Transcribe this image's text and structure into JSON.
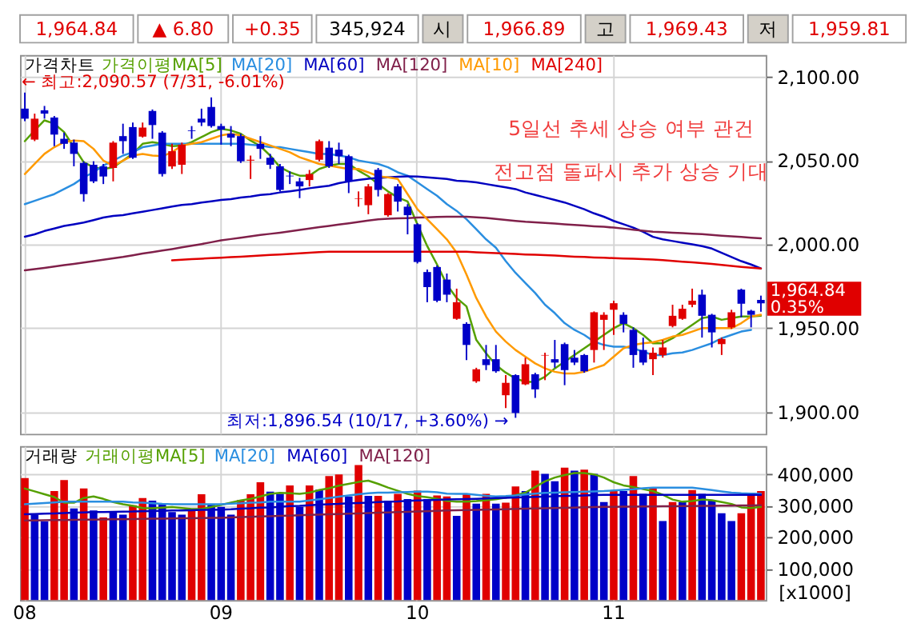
{
  "chart_data": [
    {
      "type": "other",
      "annotations": [
        "1,964.84",
        "▲ 6.80",
        "+0.35",
        "345,924",
        "시",
        "1,966.89",
        "고",
        "1,969.43",
        "저",
        "1,959.81"
      ]
    },
    {
      "type": "candlestick",
      "title": "가격차트",
      "tick_labels": "y",
      "grid": true,
      "legend": "top left",
      "categories": [
        "08",
        null,
        null,
        null,
        null,
        null,
        null,
        null,
        null,
        null,
        null,
        null,
        null,
        null,
        null,
        null,
        null,
        null,
        null,
        null,
        "09",
        null,
        null,
        null,
        null,
        null,
        null,
        null,
        null,
        null,
        null,
        null,
        null,
        null,
        null,
        null,
        null,
        null,
        null,
        null,
        "10",
        null,
        null,
        null,
        null,
        null,
        null,
        null,
        null,
        null,
        null,
        null,
        null,
        null,
        null,
        null,
        null,
        null,
        null,
        null,
        "11",
        null,
        null,
        null,
        null,
        null,
        null,
        null,
        null,
        null,
        null,
        null,
        null,
        null,
        null,
        null
      ],
      "ohlc": [
        [
          2081,
          2090.57,
          2073.5,
          2075
        ],
        [
          2062.5,
          2078,
          2061.6,
          2075
        ],
        [
          2080,
          2082.6,
          2075,
          2078
        ],
        [
          2075.7,
          2076.6,
          2058.6,
          2065.5
        ],
        [
          2063,
          2066.7,
          2057,
          2060
        ],
        [
          2060.7,
          2062.5,
          2046.6,
          2054
        ],
        [
          2048.6,
          2049.6,
          2025.5,
          2030
        ],
        [
          2047.5,
          2049.6,
          2036.6,
          2037.6
        ],
        [
          2046.5,
          2048,
          2036,
          2040.5
        ],
        [
          2045.6,
          2061.6,
          2037.6,
          2060.7
        ],
        [
          2064.6,
          2072,
          2054,
          2061.6
        ],
        [
          2070,
          2072.7,
          2051,
          2051.7
        ],
        [
          2064.3,
          2072.7,
          2063.7,
          2069.7
        ],
        [
          2079.6,
          2080.5,
          2063,
          2071.2
        ],
        [
          2066.7,
          2067.6,
          2040.5,
          2042
        ],
        [
          2046.5,
          2060,
          2045,
          2055.6
        ],
        [
          2047.5,
          2060.7,
          2042,
          2059.5
        ],
        [
          2068,
          2070.6,
          2063,
          2067.6
        ],
        [
          2075,
          2081,
          2070.6,
          2072.7
        ],
        [
          2082,
          2087.7,
          2069.7,
          2070.6
        ],
        [
          2070.6,
          2072,
          2059.5,
          2068.5
        ],
        [
          2066,
          2070.6,
          2058.6,
          2063.7
        ],
        [
          2064.6,
          2066,
          2048.6,
          2049.6
        ],
        [
          2050,
          2053,
          2039,
          2050.5
        ],
        [
          2060,
          2064.6,
          2051,
          2057
        ],
        [
          2051.7,
          2054,
          2045,
          2047.5
        ],
        [
          2046.6,
          2048,
          2031.6,
          2032.5
        ],
        [
          2041,
          2043.6,
          2036,
          2040.6
        ],
        [
          2037.6,
          2039.7,
          2027.6,
          2034.6
        ],
        [
          2038.4,
          2044.4,
          2034.6,
          2042
        ],
        [
          2050.5,
          2062.5,
          2049.6,
          2061.6
        ],
        [
          2057.7,
          2061.6,
          2045.6,
          2046.6
        ],
        [
          2056.5,
          2060.7,
          2048,
          2052.6
        ],
        [
          2052.6,
          2053.5,
          2030.6,
          2037.6
        ],
        [
          2027,
          2031.6,
          2022.5,
          2027.3
        ],
        [
          2023.4,
          2036,
          2018,
          2034.6
        ],
        [
          2044.5,
          2045.6,
          2028.6,
          2032.5
        ],
        [
          2017.4,
          2030.6,
          2016.5,
          2030
        ],
        [
          2034.6,
          2036,
          2019.6,
          2025.5
        ],
        [
          2022.5,
          2024,
          2006,
          2017.4
        ],
        [
          2012,
          2012.6,
          1988.6,
          1989.5
        ],
        [
          1983.5,
          1985,
          1965.5,
          1974.5
        ],
        [
          1986.5,
          1987.4,
          1965.5,
          1966.4
        ],
        [
          1979,
          1982.6,
          1965.5,
          1970
        ],
        [
          1955.6,
          1973.6,
          1955,
          1965.5
        ],
        [
          1952.6,
          1953.5,
          1931,
          1940
        ],
        [
          1918.3,
          1926.4,
          1917.4,
          1925.5
        ],
        [
          1931.5,
          1940,
          1925,
          1928
        ],
        [
          1931.5,
          1940,
          1923.4,
          1924.3
        ],
        [
          1910,
          1922,
          1902.4,
          1917.4
        ],
        [
          1922,
          1922.5,
          1896.54,
          1899.4
        ],
        [
          1916.5,
          1932.4,
          1916,
          1928.5
        ],
        [
          1922.5,
          1923.4,
          1908.4,
          1913.5
        ],
        [
          1933.7,
          1935.4,
          1919,
          1934
        ],
        [
          1931.5,
          1943,
          1926.4,
          1929.5
        ],
        [
          1940.5,
          1941.4,
          1916,
          1925
        ],
        [
          1932.4,
          1937,
          1928,
          1929.5
        ],
        [
          1934,
          1934.6,
          1923.4,
          1924.3
        ],
        [
          1937,
          1960,
          1929.5,
          1959.5
        ],
        [
          1955,
          1959.5,
          1937,
          1958
        ],
        [
          1961,
          1966.4,
          1946,
          1964.9
        ],
        [
          1958,
          1959.5,
          1947.5,
          1952.6
        ],
        [
          1949,
          1950.5,
          1926.4,
          1934
        ],
        [
          1937,
          1944.4,
          1928,
          1929.5
        ],
        [
          1931.5,
          1938.5,
          1922,
          1935.4
        ],
        [
          1933.9,
          1943,
          1932.4,
          1938.5
        ],
        [
          1951.3,
          1964,
          1950.5,
          1957.4
        ],
        [
          1955.6,
          1964,
          1955,
          1961.6
        ],
        [
          1964,
          1973.6,
          1962.5,
          1966.4
        ],
        [
          1970,
          1973,
          1944.4,
          1957.4
        ],
        [
          1958,
          1958.6,
          1938.5,
          1947.5
        ],
        [
          1940.5,
          1944.4,
          1934,
          1943.5
        ],
        [
          1950.5,
          1961,
          1949.6,
          1959.5
        ],
        [
          1973,
          1973.6,
          1956.5,
          1964.6
        ],
        [
          1960.4,
          1961,
          1950.5,
          1958.0
        ],
        [
          1966.89,
          1969.43,
          1959.81,
          1964.84
        ]
      ],
      "colors": [
        "#0000c8",
        "#e00000",
        "#0000c8",
        "#0000c8",
        "#0000c8",
        "#0000c8",
        "#0000c8",
        "#0000c8",
        "#0000c8",
        "#e00000",
        "#0000c8",
        "#0000c8",
        "#e00000",
        "#0000c8",
        "#0000c8",
        "#e00000",
        "#e00000",
        "#0000c8",
        "#0000c8",
        "#0000c8",
        "#0000c8",
        "#0000c8",
        "#0000c8",
        "#e00000",
        "#0000c8",
        "#0000c8",
        "#0000c8",
        "#0000c8",
        "#0000c8",
        "#e00000",
        "#e00000",
        "#0000c8",
        "#0000c8",
        "#0000c8",
        "#e00000",
        "#e00000",
        "#0000c8",
        "#e00000",
        "#0000c8",
        "#0000c8",
        "#0000c8",
        "#0000c8",
        "#0000c8",
        "#0000c8",
        "#e00000",
        "#0000c8",
        "#e00000",
        "#0000c8",
        "#0000c8",
        "#e00000",
        "#0000c8",
        "#e00000",
        "#0000c8",
        "#e00000",
        "#0000c8",
        "#0000c8",
        "#0000c8",
        "#0000c8",
        "#e00000",
        "#e00000",
        "#e00000",
        "#0000c8",
        "#0000c8",
        "#0000c8",
        "#e00000",
        "#e00000",
        "#e00000",
        "#e00000",
        "#e00000",
        "#0000c8",
        "#0000c8",
        "#e00000",
        "#e00000",
        "#0000c8",
        "#0000c8",
        "#0000c8"
      ],
      "series": [
        {
          "name": "가격이평MA[5]",
          "type": "line",
          "color": "#55a000",
          "values": [
            2061.6,
            2068,
            2074,
            2072,
            2067,
            2058,
            2049,
            2046,
            2045,
            2046,
            2050,
            2054,
            2060,
            2061,
            2060,
            2058.6,
            2059,
            2061,
            2064,
            2067,
            2069,
            2068,
            2066,
            2062,
            2058.6,
            2053,
            2046,
            2043,
            2041,
            2041,
            2045,
            2047,
            2048,
            2048,
            2044,
            2040.6,
            2036,
            2031.6,
            2028,
            2025.6,
            2012,
            1999,
            1988,
            1976,
            1968,
            1963,
            1943,
            1935,
            1928,
            1923.5,
            1920,
            1918,
            1918,
            1921,
            1926,
            1930,
            1934,
            1938,
            1942,
            1946,
            1950,
            1953,
            1950,
            1946,
            1941,
            1941,
            1944,
            1948,
            1952,
            1956,
            1957,
            1955,
            1956,
            1957,
            1957,
            1957.4
          ]
        },
        {
          "name": "MA[20]",
          "type": "line",
          "color": "#2a8ee0",
          "values": [
            2024,
            2026,
            2028,
            2030,
            2033,
            2036,
            2040,
            2043,
            2047,
            2050,
            2053,
            2055,
            2058,
            2059,
            2060,
            2060,
            2060,
            2060,
            2060,
            2060,
            2060,
            2060,
            2060,
            2059.5,
            2059,
            2058,
            2058,
            2057,
            2056,
            2055,
            2054,
            2054,
            2053,
            2052,
            2050,
            2049,
            2048,
            2046,
            2043,
            2041,
            2037,
            2033,
            2029,
            2024,
            2020,
            2015,
            2009,
            2003,
            1998,
            1990,
            1983,
            1977,
            1971,
            1964,
            1959,
            1953,
            1949,
            1946,
            1942,
            1940,
            1939,
            1939,
            1938,
            1936,
            1934,
            1934,
            1935,
            1935.5,
            1937,
            1939,
            1941,
            1944,
            1946,
            1948,
            1949,
            null
          ]
        },
        {
          "name": "MA[60]",
          "type": "line",
          "color": "#0000c0",
          "values": [
            2004.6,
            2006,
            2008,
            2009.5,
            2011,
            2012,
            2013,
            2014.5,
            2016,
            2017,
            2017.5,
            2018.5,
            2019.5,
            2020.5,
            2021.5,
            2022.6,
            2023.5,
            2024,
            2025,
            2025.7,
            2026.5,
            2027,
            2028,
            2028.5,
            2029.5,
            2030,
            2031,
            2031.7,
            2032.5,
            2033.5,
            2034.3,
            2035,
            2036.5,
            2037.6,
            2038.5,
            2039.2,
            2039.7,
            2040,
            2040.3,
            2040.6,
            2040.5,
            2040,
            2039.5,
            2039,
            2038,
            2037.6,
            2037,
            2036,
            2035,
            2034,
            2033,
            2031,
            2029.5,
            2028,
            2026.5,
            2025,
            2023,
            2021,
            2018.5,
            2016.5,
            2014,
            2012,
            2010,
            2007.5,
            2004.5,
            2003,
            2002,
            2001,
            2000,
            1999,
            1997.5,
            1995,
            1992.5,
            1990,
            1988,
            1985.6
          ]
        },
        {
          "name": "MA[120]",
          "type": "line",
          "color": "#80204a",
          "values": [
            1984.5,
            1985.3,
            1986,
            1986.8,
            1987.6,
            1988.4,
            1989.2,
            1990,
            1990.8,
            1991.7,
            1992.5,
            1993.5,
            1994.5,
            1995.4,
            1996.3,
            1997.2,
            1998.2,
            1999.2,
            2000.2,
            2001.3,
            2002.4,
            2003.2,
            2004,
            2004.8,
            2005.6,
            2006.3,
            2007,
            2007.8,
            2008.6,
            2009.5,
            2010.3,
            2011,
            2011.8,
            2012.6,
            2013.4,
            2014.2,
            2015,
            2015.3,
            2015.5,
            2015.7,
            2016,
            2016.2,
            2016.4,
            2016.5,
            2016.5,
            2016.5,
            2016.2,
            2015.8,
            2015.2,
            2014.6,
            2014,
            2013.5,
            2013.2,
            2012.8,
            2012.4,
            2012,
            2011.6,
            2011.2,
            2010.8,
            2010.5,
            2010,
            2009.4,
            2008.8,
            2008.2,
            2007.6,
            2007.3,
            2007,
            2006.7,
            2006.4,
            2006.1,
            2005.6,
            2005.2,
            2004.8,
            2004.4,
            2004,
            2003.6
          ]
        },
        {
          "name": "MA[10]",
          "type": "line",
          "color": "#ff9a00",
          "values": [
            2042,
            2048,
            2054,
            2058,
            2061,
            2062,
            2061.6,
            2057,
            2050,
            2047,
            2050,
            2053,
            2054,
            2053,
            2052.6,
            2055,
            2059,
            2060,
            2061,
            2063,
            2065,
            2066,
            2065,
            2063,
            2061,
            2059,
            2057,
            2055,
            2052,
            2050,
            2048,
            2047,
            2046,
            2045,
            2045,
            2043,
            2040.6,
            2040,
            2039,
            2030,
            2021,
            2015,
            2009,
            2003,
            1995,
            1982,
            1968,
            1957,
            1948,
            1942,
            1937,
            1933,
            1929,
            1926,
            1924,
            1923,
            1923,
            1924,
            1926,
            1928,
            1933,
            1938,
            1940,
            1941,
            1941.6,
            1943,
            1945,
            1946,
            1948,
            1950,
            1950,
            1950,
            1950,
            1953,
            1957,
            1958
          ]
        },
        {
          "name": "MA[240]",
          "type": "line",
          "color": "#e00000",
          "values": [
            null,
            null,
            null,
            null,
            null,
            null,
            null,
            null,
            null,
            null,
            null,
            null,
            null,
            null,
            null,
            1990.5,
            1990.8,
            1991.2,
            1991.5,
            1991.8,
            1992.1,
            1992.4,
            1992.7,
            1993,
            1993.4,
            1993.7,
            1994,
            1994.3,
            1994.7,
            1995,
            1995.4,
            1995.6,
            1995.6,
            1995.6,
            1995.6,
            1995.6,
            1995.6,
            1995.6,
            1995.6,
            1995.6,
            1995.6,
            1995.6,
            1995.6,
            1995.6,
            1995.6,
            1995.6,
            1995.3,
            1995,
            1994.8,
            1994.5,
            1994.3,
            1994,
            1993.8,
            1993.6,
            1993.3,
            1993,
            1992.7,
            1992.5,
            1992.2,
            1992,
            1991.8,
            1991.6,
            1991.4,
            1991.2,
            1991,
            1990.6,
            1990.1,
            1989.7,
            1989.3,
            1988.8,
            1988.3,
            1987.7,
            1987.1,
            1986.6,
            1986.1,
            1985.6
          ]
        }
      ],
      "ylim": [
        1887,
        2113
      ],
      "yticks": [
        {
          "value": 1900,
          "label": "1,900.00"
        },
        {
          "value": 1950,
          "label": "1,950.00"
        },
        {
          "value": 2000,
          "label": "2,000.00"
        },
        {
          "value": 2050,
          "label": "2,050.00"
        },
        {
          "value": 2100,
          "label": "2,100.00"
        }
      ],
      "annotations": [
        "← 최고:2,090.57 (7/31, -6.01%)",
        "최저:1,896.54 (10/17, +3.60%) →",
        "5일선 추세 상승 여부 관건",
        "전고점 돌파시 추가 상승 기대",
        "1,964.84\n0.35%"
      ]
    },
    {
      "type": "bar",
      "title": "거래량",
      "grid": true,
      "legend": "top left",
      "ylabel": "[x1000]",
      "categories": [
        "08",
        null,
        null,
        null,
        null,
        null,
        null,
        null,
        null,
        null,
        null,
        null,
        null,
        null,
        null,
        null,
        null,
        null,
        null,
        null,
        "09",
        null,
        null,
        null,
        null,
        null,
        null,
        null,
        null,
        null,
        null,
        null,
        null,
        null,
        null,
        null,
        null,
        null,
        null,
        null,
        "10",
        null,
        null,
        null,
        null,
        null,
        null,
        null,
        null,
        null,
        null,
        null,
        null,
        null,
        null,
        null,
        null,
        null,
        null,
        null,
        "11",
        null,
        null,
        null,
        null,
        null,
        null,
        null,
        null,
        null,
        null,
        null,
        null,
        null,
        null,
        null
      ],
      "values": [
        388300,
        271700,
        250000,
        346700,
        381700,
        291700,
        355000,
        285000,
        263300,
        280000,
        271700,
        301700,
        325000,
        316700,
        305000,
        280000,
        271700,
        288300,
        336700,
        305000,
        296700,
        271700,
        318300,
        336700,
        375000,
        345000,
        338300,
        365000,
        296700,
        365000,
        351700,
        395000,
        400000,
        330000,
        430000,
        331700,
        331700,
        316700,
        338300,
        321700,
        348300,
        321700,
        333300,
        330000,
        268300,
        338300,
        306700,
        338300,
        306700,
        310000,
        361700,
        346700,
        411700,
        401700,
        378300,
        421700,
        411700,
        415000,
        401700,
        311700,
        348300,
        346700,
        395000,
        338300,
        358300,
        251700,
        311700,
        311700,
        350000,
        338300,
        316700,
        276700,
        251700,
        276700,
        341700,
        346700
      ],
      "colors": [
        "#e00000",
        "#0000c8",
        "#0000c8",
        "#e00000",
        "#e00000",
        "#0000c8",
        "#e00000",
        "#0000c8",
        "#e00000",
        "#0000c8",
        "#0000c8",
        "#e00000",
        "#e00000",
        "#0000c8",
        "#0000c8",
        "#0000c8",
        "#0000c8",
        "#e00000",
        "#e00000",
        "#0000c8",
        "#0000c8",
        "#0000c8",
        "#e00000",
        "#e00000",
        "#e00000",
        "#0000c8",
        "#0000c8",
        "#e00000",
        "#0000c8",
        "#e00000",
        "#0000c8",
        "#e00000",
        "#e00000",
        "#0000c8",
        "#e00000",
        "#0000c8",
        "#e00000",
        "#0000c8",
        "#e00000",
        "#0000c8",
        "#e00000",
        "#0000c8",
        "#e00000",
        "#e00000",
        "#0000c8",
        "#e00000",
        "#0000c8",
        "#e00000",
        "#0000c8",
        "#e00000",
        "#e00000",
        "#0000c8",
        "#e00000",
        "#0000c8",
        "#0000c8",
        "#e00000",
        "#0000c8",
        "#e00000",
        "#0000c8",
        "#0000c8",
        "#e00000",
        "#0000c8",
        "#e00000",
        "#0000c8",
        "#e00000",
        "#0000c8",
        "#e00000",
        "#0000c8",
        "#e00000",
        "#0000c8",
        "#0000c8",
        "#0000c8",
        "#0000c8",
        "#e00000",
        "#e00000",
        "#e00000"
      ],
      "series": [
        {
          "name": "거래이평MA[5]",
          "type": "line",
          "color": "#55a000",
          "values": [
            355000,
            346000,
            337000,
            328000,
            310000,
            310000,
            325000,
            330000,
            322000,
            312000,
            305000,
            300000,
            293000,
            292000,
            294000,
            296000,
            293000,
            290000,
            290000,
            296000,
            303000,
            310000,
            317000,
            322000,
            330000,
            338000,
            341000,
            340000,
            338000,
            342000,
            350000,
            356000,
            364000,
            370000,
            376000,
            380000,
            370000,
            358000,
            348000,
            338000,
            331000,
            327000,
            322000,
            316000,
            313000,
            313000,
            315000,
            318000,
            321000,
            326000,
            334000,
            342000,
            360000,
            378000,
            390000,
            398000,
            404000,
            404000,
            400000,
            390000,
            375000,
            365000,
            360000,
            353000,
            347000,
            335000,
            320000,
            313000,
            315000,
            320000,
            318000,
            312000,
            306000,
            295000,
            293000,
            297000
          ]
        },
        {
          "name": "MA[20]",
          "type": "line",
          "color": "#2a8ee0",
          "values": [
            305000,
            307000,
            309000,
            311000,
            313000,
            313000,
            313000,
            313000,
            313000,
            313000,
            313000,
            311000,
            310000,
            308000,
            306000,
            305000,
            305000,
            305000,
            305000,
            305000,
            305000,
            307000,
            308000,
            310000,
            311000,
            313000,
            313000,
            313000,
            313000,
            317000,
            321000,
            325000,
            329000,
            333000,
            337000,
            340000,
            342000,
            342000,
            343000,
            344000,
            345000,
            345000,
            343000,
            339000,
            338000,
            338000,
            335000,
            332000,
            330000,
            331000,
            333000,
            336000,
            339000,
            341000,
            342000,
            343000,
            344000,
            345000,
            346000,
            347000,
            349000,
            351000,
            353000,
            356000,
            358000,
            358000,
            358000,
            358000,
            358000,
            354000,
            350000,
            346000,
            342000,
            340000,
            339000,
            338000
          ]
        },
        {
          "name": "MA[60]",
          "type": "line",
          "color": "#0000c0",
          "values": [
            273000,
            274000,
            275000,
            276000,
            277000,
            278000,
            279000,
            280000,
            280500,
            281000,
            281700,
            282000,
            283000,
            283500,
            284000,
            285000,
            285500,
            286000,
            287000,
            287500,
            288000,
            289000,
            291000,
            292000,
            294000,
            295000,
            297000,
            299000,
            300000,
            302000,
            304000,
            305000,
            306000,
            308000,
            309000,
            310000,
            312000,
            313000,
            314000,
            316000,
            317000,
            318000,
            319000,
            320000,
            321000,
            321700,
            322500,
            323500,
            324500,
            325500,
            326500,
            327500,
            328500,
            329500,
            330500,
            331500,
            332000,
            333000,
            334000,
            335000,
            335000,
            335000,
            335000,
            335000,
            335000,
            335000,
            335000,
            335000,
            335000,
            335000,
            335000,
            335000,
            335000,
            335000,
            335000,
            335000
          ]
        },
        {
          "name": "MA[120]",
          "type": "line",
          "color": "#80204a",
          "values": [
            253300,
            253700,
            254200,
            254600,
            255000,
            255500,
            255900,
            256300,
            256800,
            257200,
            257600,
            258100,
            258500,
            258900,
            259400,
            259800,
            260200,
            260700,
            261100,
            261500,
            262000,
            263000,
            264000,
            265000,
            266000,
            267000,
            268000,
            269000,
            270000,
            271000,
            272000,
            273000,
            274000,
            275000,
            276000,
            277000,
            278000,
            279000,
            280000,
            281000,
            282000,
            283000,
            284000,
            285000,
            285700,
            286500,
            287200,
            287900,
            288600,
            289400,
            290100,
            290800,
            291600,
            292300,
            293000,
            293800,
            294500,
            295200,
            296000,
            296700,
            297000,
            297300,
            297600,
            297900,
            298300,
            298600,
            298900,
            299200,
            299500,
            299800,
            300200,
            300500,
            300800,
            301100,
            301400,
            301700
          ]
        }
      ],
      "ylim": [
        0,
        490000
      ],
      "yticks": [
        {
          "value": 100000,
          "label": "100,000"
        },
        {
          "value": 200000,
          "label": "200,000"
        },
        {
          "value": 300000,
          "label": "300,000"
        },
        {
          "value": 400000,
          "label": "400,000"
        }
      ]
    }
  ]
}
